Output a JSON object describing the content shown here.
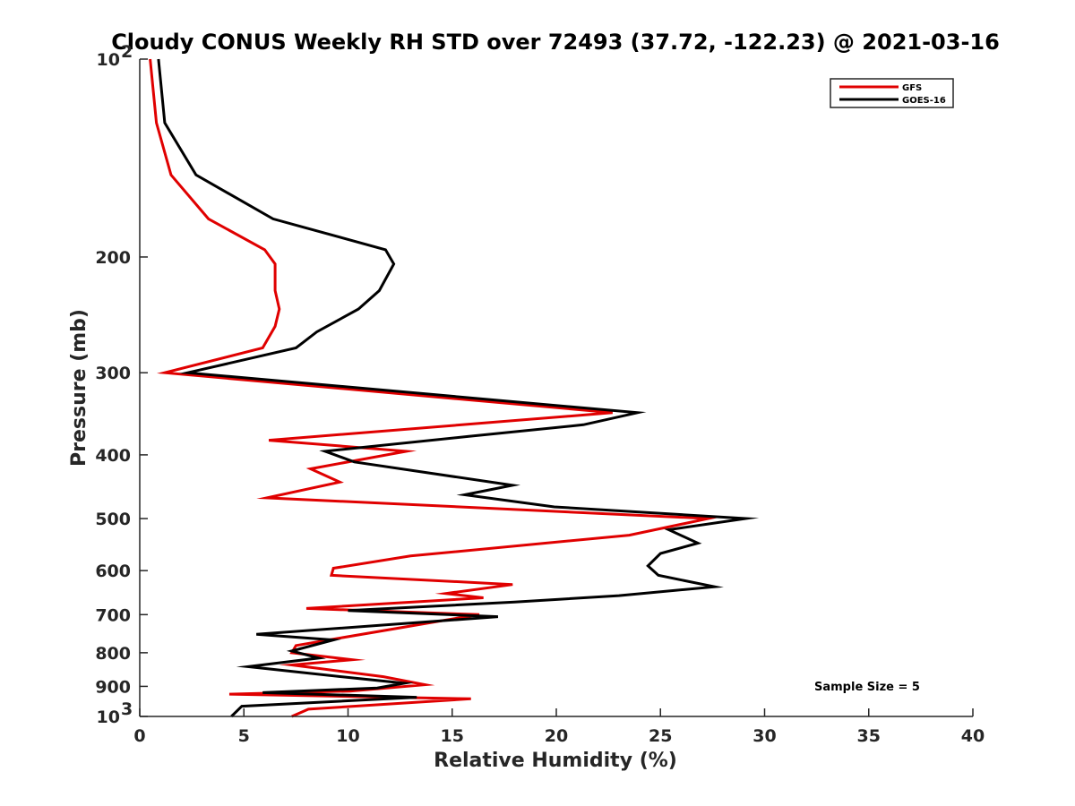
{
  "chart_data": {
    "type": "line",
    "title": "Cloudy CONUS Weekly RH STD over 72493 (37.72, -122.23) @ 2021-03-16",
    "xlabel": "Relative Humidity (%)",
    "ylabel": "Pressure (mb)",
    "xlim": [
      0,
      40
    ],
    "ylim": [
      100,
      1000
    ],
    "y_scale": "log",
    "y_reversed": true,
    "grid": false,
    "legend_position": "top-right",
    "x_ticks": [
      {
        "value": 0,
        "label": "0"
      },
      {
        "value": 5,
        "label": "5"
      },
      {
        "value": 10,
        "label": "10"
      },
      {
        "value": 15,
        "label": "15"
      },
      {
        "value": 20,
        "label": "20"
      },
      {
        "value": 25,
        "label": "25"
      },
      {
        "value": 30,
        "label": "30"
      },
      {
        "value": 35,
        "label": "35"
      },
      {
        "value": 40,
        "label": "40"
      }
    ],
    "y_ticks": [
      {
        "value": 100,
        "label": "10",
        "sup": "2"
      },
      {
        "value": 200,
        "label": "200",
        "sup": ""
      },
      {
        "value": 300,
        "label": "300",
        "sup": ""
      },
      {
        "value": 400,
        "label": "400",
        "sup": ""
      },
      {
        "value": 500,
        "label": "500",
        "sup": ""
      },
      {
        "value": 600,
        "label": "600",
        "sup": ""
      },
      {
        "value": 700,
        "label": "700",
        "sup": ""
      },
      {
        "value": 800,
        "label": "800",
        "sup": ""
      },
      {
        "value": 900,
        "label": "900",
        "sup": ""
      },
      {
        "value": 1000,
        "label": "10",
        "sup": "3"
      }
    ],
    "annotation": "Sample Size = 5",
    "series": [
      {
        "name": "GFS",
        "color": "#e00000",
        "points": [
          [
            0.5,
            100
          ],
          [
            0.8,
            125
          ],
          [
            1.5,
            150
          ],
          [
            3.3,
            175
          ],
          [
            6.0,
            195
          ],
          [
            6.5,
            205
          ],
          [
            6.5,
            225
          ],
          [
            6.7,
            240
          ],
          [
            6.5,
            255
          ],
          [
            5.9,
            275
          ],
          [
            1.2,
            300
          ],
          [
            22.7,
            345
          ],
          [
            6.2,
            380
          ],
          [
            12.8,
            395
          ],
          [
            8.2,
            420
          ],
          [
            9.6,
            440
          ],
          [
            6.1,
            465
          ],
          [
            27.3,
            500
          ],
          [
            23.5,
            530
          ],
          [
            13.0,
            570
          ],
          [
            9.3,
            595
          ],
          [
            9.2,
            610
          ],
          [
            17.9,
            630
          ],
          [
            14.7,
            650
          ],
          [
            16.5,
            660
          ],
          [
            8.0,
            685
          ],
          [
            16.3,
            700
          ],
          [
            14.5,
            715
          ],
          [
            9.6,
            760
          ],
          [
            7.5,
            780
          ],
          [
            7.3,
            800
          ],
          [
            10.2,
            820
          ],
          [
            7.3,
            835
          ],
          [
            11.7,
            870
          ],
          [
            13.7,
            895
          ],
          [
            10.1,
            915
          ],
          [
            4.3,
            925
          ],
          [
            15.9,
            940
          ],
          [
            8.1,
            975
          ],
          [
            7.3,
            1000
          ]
        ]
      },
      {
        "name": "GOES-16",
        "color": "#000000",
        "points": [
          [
            0.9,
            100
          ],
          [
            1.2,
            125
          ],
          [
            2.7,
            150
          ],
          [
            6.4,
            175
          ],
          [
            11.8,
            195
          ],
          [
            12.2,
            205
          ],
          [
            11.5,
            225
          ],
          [
            10.5,
            240
          ],
          [
            8.5,
            260
          ],
          [
            7.5,
            275
          ],
          [
            2.3,
            300
          ],
          [
            23.9,
            345
          ],
          [
            21.3,
            360
          ],
          [
            15.8,
            375
          ],
          [
            8.9,
            395
          ],
          [
            10.3,
            410
          ],
          [
            17.9,
            445
          ],
          [
            15.6,
            460
          ],
          [
            19.9,
            480
          ],
          [
            29.1,
            500
          ],
          [
            25.4,
            520
          ],
          [
            26.8,
            545
          ],
          [
            25.0,
            565
          ],
          [
            24.4,
            590
          ],
          [
            24.9,
            610
          ],
          [
            27.6,
            635
          ],
          [
            23.0,
            655
          ],
          [
            18.0,
            670
          ],
          [
            10.0,
            690
          ],
          [
            17.2,
            705
          ],
          [
            5.6,
            750
          ],
          [
            9.3,
            765
          ],
          [
            7.3,
            795
          ],
          [
            8.6,
            815
          ],
          [
            5.2,
            840
          ],
          [
            10.4,
            875
          ],
          [
            12.7,
            890
          ],
          [
            11.4,
            905
          ],
          [
            5.9,
            920
          ],
          [
            13.3,
            935
          ],
          [
            4.9,
            965
          ],
          [
            4.4,
            1000
          ]
        ]
      }
    ]
  }
}
